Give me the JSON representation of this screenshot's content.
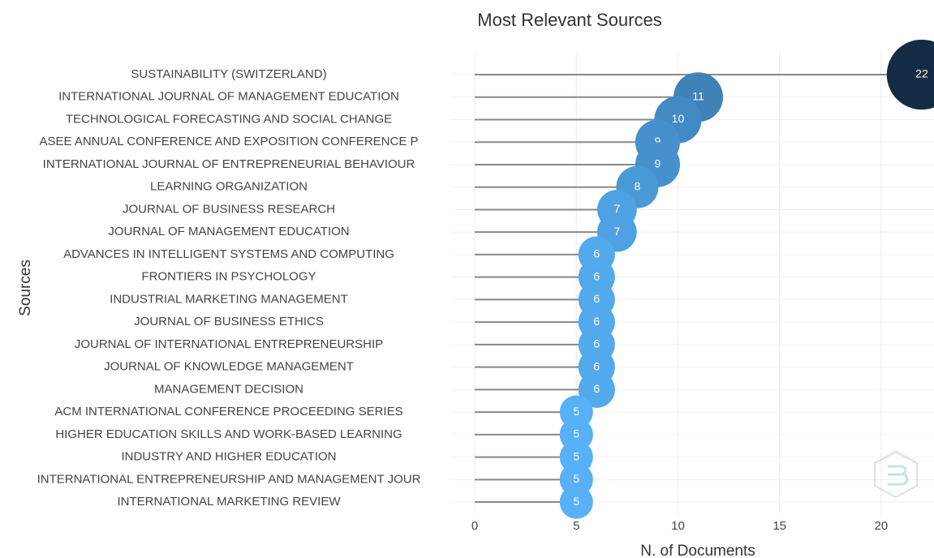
{
  "chart_data": {
    "type": "lollipop",
    "title": "Most Relevant Sources",
    "x_label": "N. of Documents",
    "y_label": "Sources",
    "categories": [
      "SUSTAINABILITY (SWITZERLAND)",
      "INTERNATIONAL JOURNAL OF MANAGEMENT EDUCATION",
      "TECHNOLOGICAL FORECASTING AND SOCIAL CHANGE",
      "ASEE ANNUAL CONFERENCE AND EXPOSITION CONFERENCE P",
      "INTERNATIONAL JOURNAL OF ENTREPRENEURIAL BEHAVIOUR",
      "LEARNING ORGANIZATION",
      "JOURNAL OF BUSINESS RESEARCH",
      "JOURNAL OF MANAGEMENT EDUCATION",
      "ADVANCES IN INTELLIGENT SYSTEMS AND COMPUTING",
      "FRONTIERS IN PSYCHOLOGY",
      "INDUSTRIAL MARKETING MANAGEMENT",
      "JOURNAL OF BUSINESS ETHICS",
      "JOURNAL OF INTERNATIONAL ENTREPRENEURSHIP",
      "JOURNAL OF KNOWLEDGE MANAGEMENT",
      "MANAGEMENT DECISION",
      "ACM INTERNATIONAL CONFERENCE PROCEEDING SERIES",
      "HIGHER EDUCATION SKILLS AND WORK-BASED LEARNING",
      "INDUSTRY AND HIGHER EDUCATION",
      "INTERNATIONAL ENTREPRENEURSHIP AND MANAGEMENT JOUR",
      "INTERNATIONAL MARKETING REVIEW"
    ],
    "values": [
      22,
      11,
      10,
      9,
      9,
      8,
      7,
      7,
      6,
      6,
      6,
      6,
      6,
      6,
      6,
      5,
      5,
      5,
      5,
      5
    ],
    "xlim": [
      -1.2,
      22.6
    ],
    "xticks": [
      0,
      5,
      10,
      15,
      20
    ],
    "color_low": "#56b1f7",
    "color_high": "#132b43",
    "line_color": "#888888",
    "grid": true
  }
}
